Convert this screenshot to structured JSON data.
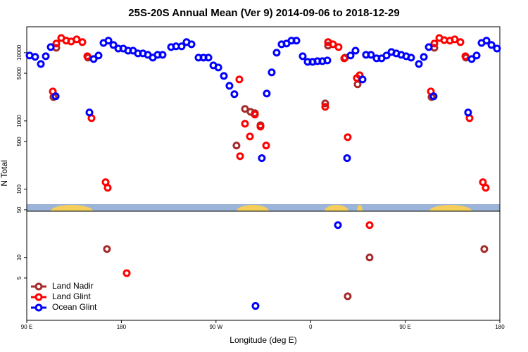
{
  "chart_data": {
    "type": "scatter",
    "title": "25S-20S Annual Mean (Ver 9)   2014-09-06 to 2018-12-29",
    "x_label": "Longitude (deg E)",
    "y_label": "N Total",
    "log_y": true,
    "legend": "bottom-left",
    "xlim": [
      90,
      540
    ],
    "xticks": [
      {
        "value": 90,
        "label": "90 E"
      },
      180,
      {
        "value": 270,
        "label": "90 W"
      },
      {
        "value": 360,
        "label": "0"
      },
      {
        "value": 450,
        "label": "90 E"
      },
      {
        "value": 540,
        "label": "180"
      }
    ],
    "ylim": [
      1.2,
      24000
    ],
    "yticks": [
      5,
      10,
      50,
      100,
      500,
      1000,
      5000,
      10000
    ],
    "series": [
      {
        "name": "Land Nadir",
        "color": "#a52a2a",
        "x": [
          115.4,
          118.1,
          148.3,
          166.3,
          289.5,
          297.6,
          302.9,
          307,
          312.3,
          373.9,
          376.6,
          392.7,
          395.3,
          404.7,
          416.1,
          475,
          477.7,
          507.8,
          525.2
        ],
        "values": [
          2240,
          11800,
          8470,
          13.3,
          436,
          1500,
          1360,
          1300,
          867,
          1810,
          12700,
          8470,
          2.7,
          3440,
          10,
          2240,
          11800,
          8470,
          13.3
        ]
      },
      {
        "name": "Land Glint",
        "color": "#ff0000",
        "x": [
          114.8,
          118.1,
          122.8,
          127.5,
          132.2,
          137.5,
          142.9,
          147.6,
          151.6,
          165,
          167,
          185.1,
          292.2,
          292.9,
          297.6,
          302.3,
          307,
          312.3,
          317.7,
          373.9,
          376.6,
          381.3,
          386.6,
          392,
          395.3,
          404,
          406.7,
          416.1,
          474.4,
          477.7,
          482.4,
          487.1,
          492.5,
          497.1,
          502.5,
          507.2,
          511.2,
          523.9,
          526.6
        ],
        "values": [
          2710,
          13600,
          16400,
          15000,
          14600,
          15700,
          14300,
          8880,
          1100,
          127,
          105,
          5.9,
          4060,
          305,
          910,
          593,
          1240,
          827,
          436,
          1610,
          14300,
          13300,
          12100,
          8270,
          579,
          4250,
          4680,
          29.8,
          2710,
          13600,
          16400,
          15300,
          15000,
          15700,
          14300,
          8880,
          1100,
          127,
          105
        ]
      },
      {
        "name": "Ocean Glint",
        "color": "#0000ff",
        "x": [
          92.7,
          98,
          103.4,
          108.1,
          112.8,
          117.5,
          149.6,
          153.6,
          158.3,
          163,
          167.7,
          172.4,
          177.1,
          181.8,
          186.4,
          191.1,
          195.8,
          200.5,
          205.2,
          209.9,
          214.5,
          219.2,
          227.3,
          232,
          237.3,
          242,
          246.7,
          253.4,
          258.1,
          262.8,
          267.5,
          272.2,
          277.5,
          282.8,
          287.5,
          307.6,
          313.6,
          318.3,
          323,
          327.7,
          332.4,
          337.1,
          341.8,
          346.5,
          352.5,
          357.2,
          361.9,
          366.5,
          371.2,
          375.9,
          386,
          394.7,
          398,
          402.7,
          409.4,
          412.7,
          417.4,
          422.8,
          427.5,
          432.2,
          436.9,
          441.5,
          446.2,
          450.9,
          455.6,
          463,
          467.7,
          472.4,
          477,
          509.8,
          513.2,
          517.9,
          522.6,
          527.3,
          532,
          537.3
        ],
        "values": [
          9100,
          8700,
          6840,
          8880,
          12100,
          2300,
          1330,
          8070,
          9100,
          13900,
          15000,
          13000,
          11500,
          11500,
          10700,
          10700,
          9770,
          9770,
          9310,
          8470,
          9310,
          9310,
          12100,
          12400,
          12400,
          14300,
          13300,
          8470,
          8470,
          8470,
          6520,
          6080,
          4570,
          3270,
          2470,
          1.95,
          285,
          2520,
          5150,
          10000,
          13300,
          13600,
          15000,
          15000,
          8880,
          7350,
          7350,
          7520,
          7520,
          7710,
          29.8,
          285,
          9100,
          10700,
          4060,
          9310,
          9310,
          8270,
          8270,
          9100,
          10240,
          9770,
          9310,
          8880,
          8470,
          6840,
          8670,
          12100,
          2300,
          1330,
          8070,
          9100,
          13900,
          15000,
          13000,
          11500
        ]
      }
    ]
  }
}
